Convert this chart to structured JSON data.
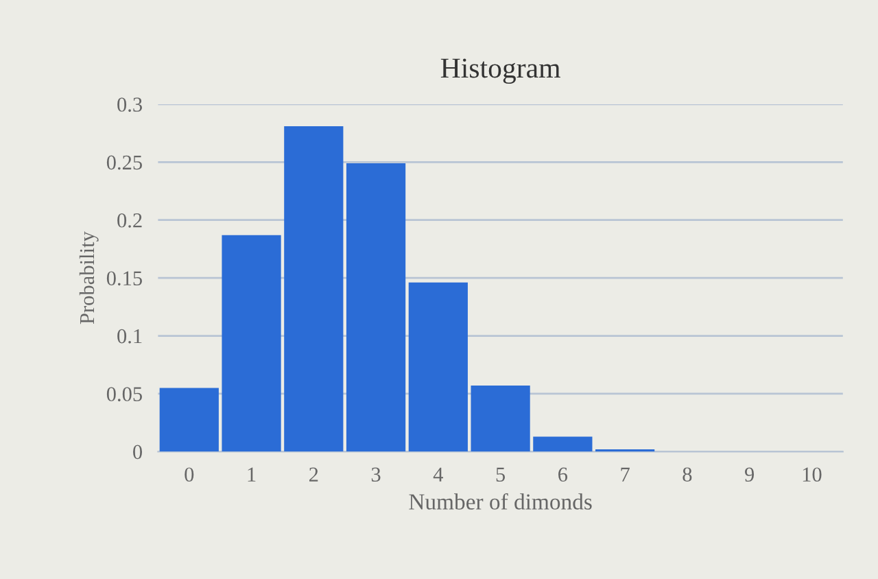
{
  "chart_data": {
    "type": "bar",
    "title": "Histogram",
    "xlabel": "Number of dimonds",
    "ylabel": "Probability",
    "categories": [
      "0",
      "1",
      "2",
      "3",
      "4",
      "5",
      "6",
      "7",
      "8",
      "9",
      "10"
    ],
    "values": [
      0.055,
      0.187,
      0.281,
      0.249,
      0.146,
      0.057,
      0.013,
      0.002,
      0,
      0,
      0
    ],
    "color": "#2b6cd6",
    "ylim": [
      0,
      0.3
    ],
    "yticks": [
      0,
      0.05,
      0.1,
      0.15,
      0.2,
      0.25,
      0.3
    ],
    "grid": "y"
  }
}
